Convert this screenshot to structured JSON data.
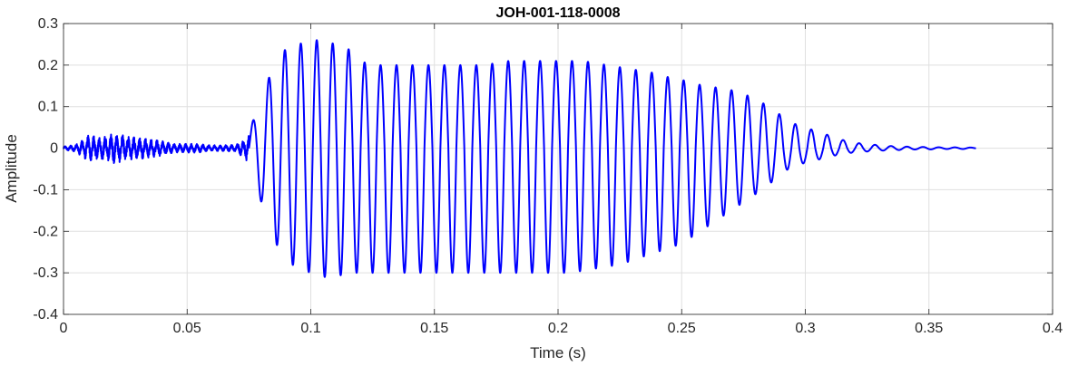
{
  "chart_data": {
    "type": "line",
    "title": "JOH-001-118-0008",
    "xlabel": "Time (s)",
    "ylabel": "Amplitude",
    "xlim": [
      0,
      0.4
    ],
    "ylim": [
      -0.4,
      0.3
    ],
    "xticks": [
      0,
      0.05,
      0.1,
      0.15,
      0.2,
      0.25,
      0.3,
      0.35,
      0.4
    ],
    "xtick_labels": [
      "0",
      "0.05",
      "0.1",
      "0.15",
      "0.2",
      "0.25",
      "0.3",
      "0.35",
      "0.4"
    ],
    "yticks": [
      -0.4,
      -0.3,
      -0.2,
      -0.1,
      0,
      0.1,
      0.2,
      0.3
    ],
    "ytick_labels": [
      "-0.4",
      "-0.3",
      "-0.2",
      "-0.1",
      "0",
      "0.1",
      "0.2",
      "0.3"
    ],
    "grid": true,
    "color": "#0000ff",
    "series": [
      {
        "x": [
          0,
          0.005,
          0.01,
          0.015,
          0.02,
          0.025,
          0.03,
          0.035,
          0.04,
          0.045,
          0.05,
          0.055,
          0.06,
          0.065,
          0.07,
          0.075,
          0.08,
          0.085,
          0.09,
          0.095,
          0.1,
          0.105,
          0.11,
          0.115,
          0.12,
          0.125,
          0.13,
          0.135,
          0.14,
          0.145,
          0.15,
          0.155,
          0.16,
          0.165,
          0.17,
          0.175,
          0.18,
          0.185,
          0.19,
          0.195,
          0.2,
          0.205,
          0.21,
          0.215,
          0.22,
          0.225,
          0.23,
          0.235,
          0.24,
          0.245,
          0.25,
          0.255,
          0.26,
          0.265,
          0.27,
          0.275,
          0.28,
          0.285,
          0.29,
          0.295,
          0.3,
          0.305,
          0.31,
          0.315,
          0.32,
          0.325,
          0.33,
          0.335,
          0.34,
          0.345,
          0.35,
          0.355,
          0.36,
          0.365,
          0.369
        ],
        "upper": [
          0.005,
          0.01,
          0.035,
          0.03,
          0.04,
          0.035,
          0.03,
          0.025,
          0.02,
          0.012,
          0.012,
          0.012,
          0.008,
          0.008,
          0.01,
          0.04,
          0.12,
          0.2,
          0.24,
          0.25,
          0.26,
          0.26,
          0.25,
          0.24,
          0.21,
          0.2,
          0.2,
          0.2,
          0.2,
          0.2,
          0.2,
          0.2,
          0.2,
          0.2,
          0.2,
          0.205,
          0.21,
          0.21,
          0.21,
          0.21,
          0.21,
          0.21,
          0.21,
          0.205,
          0.2,
          0.195,
          0.19,
          0.185,
          0.18,
          0.17,
          0.165,
          0.155,
          0.15,
          0.145,
          0.14,
          0.13,
          0.12,
          0.1,
          0.08,
          0.06,
          0.05,
          0.04,
          0.03,
          0.02,
          0.013,
          0.01,
          0.007,
          0.005,
          0.004,
          0.003,
          0.003,
          0.002,
          0.002,
          0.002,
          0.001
        ],
        "lower": [
          -0.005,
          -0.01,
          -0.035,
          -0.03,
          -0.04,
          -0.035,
          -0.03,
          -0.025,
          -0.02,
          -0.012,
          -0.012,
          -0.012,
          -0.008,
          -0.008,
          -0.01,
          -0.04,
          -0.13,
          -0.22,
          -0.27,
          -0.29,
          -0.3,
          -0.31,
          -0.31,
          -0.3,
          -0.3,
          -0.3,
          -0.3,
          -0.3,
          -0.3,
          -0.3,
          -0.3,
          -0.3,
          -0.3,
          -0.3,
          -0.3,
          -0.3,
          -0.3,
          -0.3,
          -0.3,
          -0.3,
          -0.3,
          -0.3,
          -0.295,
          -0.29,
          -0.285,
          -0.28,
          -0.27,
          -0.26,
          -0.25,
          -0.24,
          -0.23,
          -0.21,
          -0.19,
          -0.17,
          -0.15,
          -0.13,
          -0.11,
          -0.09,
          -0.06,
          -0.045,
          -0.035,
          -0.028,
          -0.02,
          -0.014,
          -0.01,
          -0.008,
          -0.006,
          -0.005,
          -0.004,
          -0.003,
          -0.003,
          -0.002,
          -0.002,
          -0.002,
          -0.001
        ]
      }
    ]
  }
}
